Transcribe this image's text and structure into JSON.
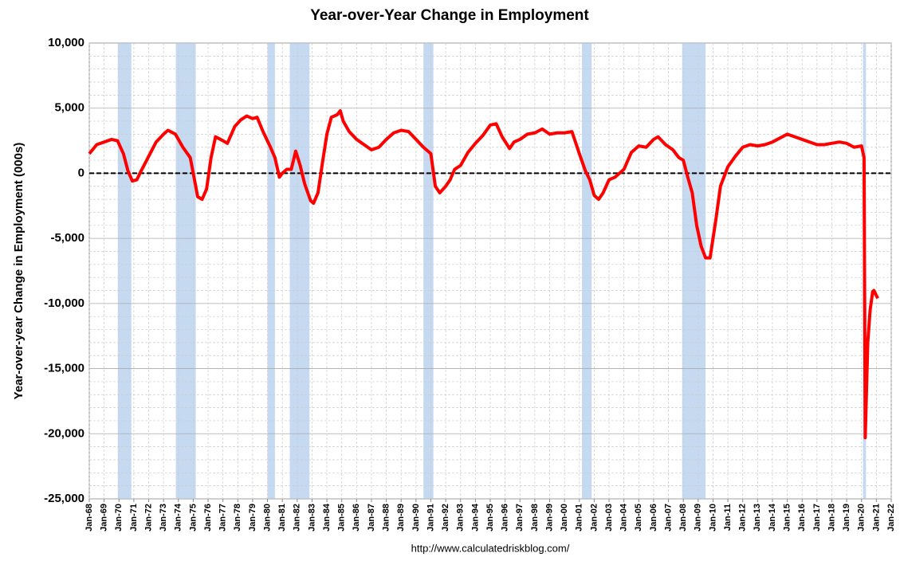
{
  "chart_data": {
    "type": "line",
    "title": "Year-over-Year Change in Employment",
    "y_label": "Year-over-year Change in Employment (000s)",
    "source": "http://www.calculatedriskblog.com/",
    "xlim": [
      1968,
      2022
    ],
    "ylim": [
      -25000,
      10000
    ],
    "yticks": [
      {
        "value": 10000,
        "label": "10,000"
      },
      {
        "value": 5000,
        "label": "5,000"
      },
      0,
      {
        "value": -5000,
        "label": "-5,000"
      },
      {
        "value": -10000,
        "label": "-10,000"
      },
      {
        "value": -15000,
        "label": "-15,000"
      },
      {
        "value": -20000,
        "label": "-20,000"
      },
      {
        "value": -25000,
        "label": "-25,000"
      }
    ],
    "xticks": [
      {
        "value": 1968,
        "label": "Jan-68"
      },
      {
        "value": 1969,
        "label": "Jan-69"
      },
      {
        "value": 1970,
        "label": "Jan-70"
      },
      {
        "value": 1971,
        "label": "Jan-71"
      },
      {
        "value": 1972,
        "label": "Jan-72"
      },
      {
        "value": 1973,
        "label": "Jan-73"
      },
      {
        "value": 1974,
        "label": "Jan-74"
      },
      {
        "value": 1975,
        "label": "Jan-75"
      },
      {
        "value": 1976,
        "label": "Jan-76"
      },
      {
        "value": 1977,
        "label": "Jan-77"
      },
      {
        "value": 1978,
        "label": "Jan-78"
      },
      {
        "value": 1979,
        "label": "Jan-79"
      },
      {
        "value": 1980,
        "label": "Jan-80"
      },
      {
        "value": 1981,
        "label": "Jan-81"
      },
      {
        "value": 1982,
        "label": "Jan-82"
      },
      {
        "value": 1983,
        "label": "Jan-83"
      },
      {
        "value": 1984,
        "label": "Jan-84"
      },
      {
        "value": 1985,
        "label": "Jan-85"
      },
      {
        "value": 1986,
        "label": "Jan-86"
      },
      {
        "value": 1987,
        "label": "Jan-87"
      },
      {
        "value": 1988,
        "label": "Jan-88"
      },
      {
        "value": 1989,
        "label": "Jan-89"
      },
      {
        "value": 1990,
        "label": "Jan-90"
      },
      {
        "value": 1991,
        "label": "Jan-91"
      },
      {
        "value": 1992,
        "label": "Jan-92"
      },
      {
        "value": 1993,
        "label": "Jan-93"
      },
      {
        "value": 1994,
        "label": "Jan-94"
      },
      {
        "value": 1995,
        "label": "Jan-95"
      },
      {
        "value": 1996,
        "label": "Jan-96"
      },
      {
        "value": 1997,
        "label": "Jan-97"
      },
      {
        "value": 1998,
        "label": "Jan-98"
      },
      {
        "value": 1999,
        "label": "Jan-99"
      },
      {
        "value": 2000,
        "label": "Jan-00"
      },
      {
        "value": 2001,
        "label": "Jan-01"
      },
      {
        "value": 2002,
        "label": "Jan-02"
      },
      {
        "value": 2003,
        "label": "Jan-03"
      },
      {
        "value": 2004,
        "label": "Jan-04"
      },
      {
        "value": 2005,
        "label": "Jan-05"
      },
      {
        "value": 2006,
        "label": "Jan-06"
      },
      {
        "value": 2007,
        "label": "Jan-07"
      },
      {
        "value": 2008,
        "label": "Jan-08"
      },
      {
        "value": 2009,
        "label": "Jan-09"
      },
      {
        "value": 2010,
        "label": "Jan-10"
      },
      {
        "value": 2011,
        "label": "Jan-11"
      },
      {
        "value": 2012,
        "label": "Jan-12"
      },
      {
        "value": 2013,
        "label": "Jan-13"
      },
      {
        "value": 2014,
        "label": "Jan-14"
      },
      {
        "value": 2015,
        "label": "Jan-15"
      },
      {
        "value": 2016,
        "label": "Jan-16"
      },
      {
        "value": 2017,
        "label": "Jan-17"
      },
      {
        "value": 2018,
        "label": "Jan-18"
      },
      {
        "value": 2019,
        "label": "Jan-19"
      },
      {
        "value": 2020,
        "label": "Jan-20"
      },
      {
        "value": 2021,
        "label": "Jan-21"
      },
      {
        "value": 2022,
        "label": "Jan-22"
      }
    ],
    "grid": true,
    "recession_color": "#c5d9f1",
    "recessions": [
      [
        1969.92,
        1970.83
      ],
      [
        1973.83,
        1975.17
      ],
      [
        1980.0,
        1980.5
      ],
      [
        1981.5,
        1982.83
      ],
      [
        1990.5,
        1991.17
      ],
      [
        2001.17,
        2001.83
      ],
      [
        2007.92,
        2009.5
      ],
      [
        2020.1,
        2020.3
      ]
    ],
    "series": [
      {
        "color": "#ff0000",
        "x": [
          1968.0,
          1968.5,
          1969.0,
          1969.5,
          1969.9,
          1970.3,
          1970.6,
          1970.9,
          1971.2,
          1971.5,
          1972.0,
          1972.5,
          1973.0,
          1973.3,
          1973.8,
          1974.3,
          1974.8,
          1975.0,
          1975.3,
          1975.6,
          1975.9,
          1976.2,
          1976.5,
          1977.0,
          1977.3,
          1977.8,
          1978.2,
          1978.6,
          1979.0,
          1979.3,
          1979.7,
          1980.2,
          1980.5,
          1980.8,
          1981.0,
          1981.3,
          1981.6,
          1981.9,
          1982.2,
          1982.5,
          1982.9,
          1983.1,
          1983.4,
          1983.7,
          1984.0,
          1984.3,
          1984.7,
          1984.9,
          1985.1,
          1985.5,
          1986.0,
          1986.5,
          1987.0,
          1987.5,
          1988.0,
          1988.5,
          1989.0,
          1989.5,
          1990.0,
          1990.5,
          1991.0,
          1991.3,
          1991.6,
          1992.0,
          1992.3,
          1992.6,
          1993.0,
          1993.5,
          1994.0,
          1994.5,
          1995.0,
          1995.4,
          1995.8,
          1996.3,
          1996.6,
          1997.0,
          1997.5,
          1998.0,
          1998.5,
          1999.0,
          1999.5,
          2000.0,
          2000.5,
          2001.0,
          2001.4,
          2001.7,
          2002.0,
          2002.3,
          2002.6,
          2003.0,
          2003.4,
          2004.0,
          2004.5,
          2005.0,
          2005.5,
          2006.0,
          2006.3,
          2006.8,
          2007.3,
          2007.7,
          2008.0,
          2008.3,
          2008.6,
          2008.9,
          2009.2,
          2009.5,
          2009.8,
          2010.2,
          2010.5,
          2011.0,
          2011.5,
          2012.0,
          2012.5,
          2013.0,
          2013.5,
          2014.0,
          2014.5,
          2015.0,
          2015.5,
          2016.0,
          2016.5,
          2017.0,
          2017.5,
          2018.0,
          2018.5,
          2019.0,
          2019.5,
          2020.0,
          2020.17,
          2020.25,
          2020.42,
          2020.58,
          2020.75,
          2020.83,
          2021.0,
          2021.1
        ],
        "values": [
          1500,
          2200,
          2400,
          2600,
          2500,
          1500,
          200,
          -600,
          -500,
          200,
          1300,
          2400,
          3000,
          3300,
          3000,
          2000,
          1200,
          0,
          -1800,
          -2000,
          -1200,
          1200,
          2800,
          2500,
          2300,
          3600,
          4100,
          4400,
          4200,
          4300,
          3200,
          2000,
          1200,
          -300,
          0,
          300,
          300,
          1700,
          600,
          -800,
          -2100,
          -2300,
          -1500,
          800,
          3000,
          4300,
          4500,
          4800,
          4000,
          3200,
          2600,
          2200,
          1800,
          2000,
          2600,
          3100,
          3300,
          3200,
          2600,
          2000,
          1500,
          -1000,
          -1500,
          -1000,
          -500,
          300,
          600,
          1600,
          2300,
          2900,
          3700,
          3800,
          2800,
          1900,
          2400,
          2600,
          3000,
          3100,
          3400,
          3000,
          3100,
          3100,
          3200,
          1500,
          200,
          -500,
          -1700,
          -2000,
          -1500,
          -500,
          -300,
          300,
          1600,
          2100,
          2000,
          2600,
          2800,
          2200,
          1800,
          1200,
          1000,
          -300,
          -1500,
          -4000,
          -5600,
          -6500,
          -6500,
          -3500,
          -1000,
          500,
          1300,
          2000,
          2200,
          2100,
          2200,
          2400,
          2700,
          3000,
          2800,
          2600,
          2400,
          2200,
          2200,
          2300,
          2400,
          2300,
          2000,
          2100,
          1200,
          -20300,
          -13000,
          -10500,
          -9100,
          -9000,
          -9400,
          -9600
        ]
      }
    ]
  }
}
